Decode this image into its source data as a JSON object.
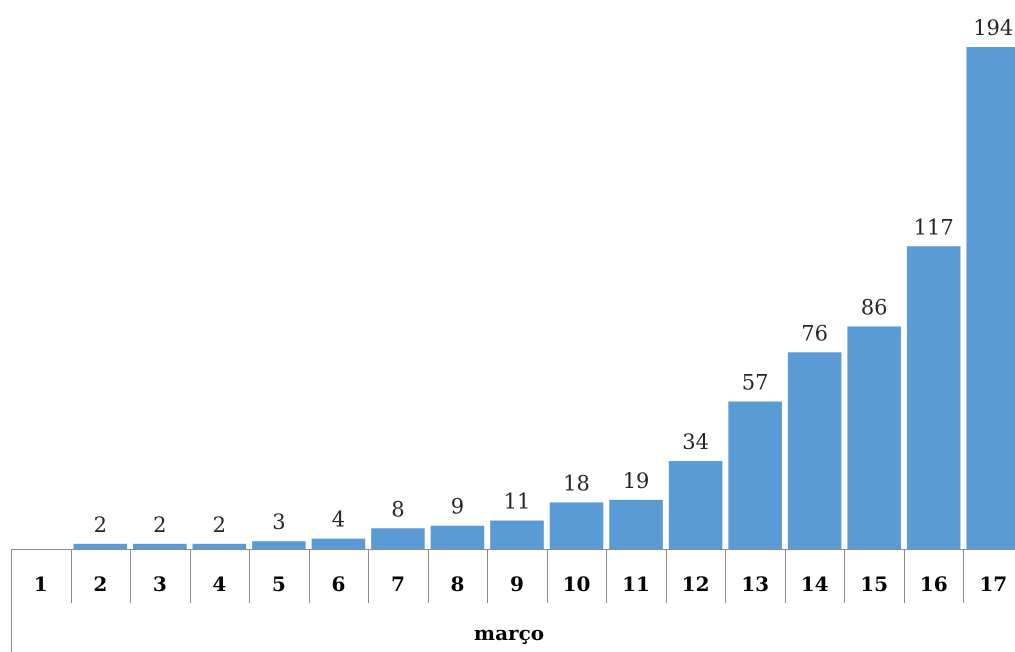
{
  "chart_data": {
    "type": "bar",
    "categories": [
      "1",
      "2",
      "3",
      "4",
      "5",
      "6",
      "7",
      "8",
      "9",
      "10",
      "11",
      "12",
      "13",
      "14",
      "15",
      "16",
      "17"
    ],
    "values": [
      0,
      2,
      2,
      2,
      3,
      4,
      8,
      9,
      11,
      18,
      19,
      34,
      57,
      76,
      86,
      117,
      194
    ],
    "data_labels": [
      "",
      "2",
      "2",
      "2",
      "3",
      "4",
      "8",
      "9",
      "11",
      "18",
      "19",
      "34",
      "57",
      "76",
      "86",
      "117",
      "194"
    ],
    "title": "",
    "xlabel": "março",
    "ylabel": "",
    "ylim": [
      0,
      194
    ],
    "grid": false,
    "legend": "none",
    "colors": {
      "bar": "#5b9bd5"
    }
  }
}
